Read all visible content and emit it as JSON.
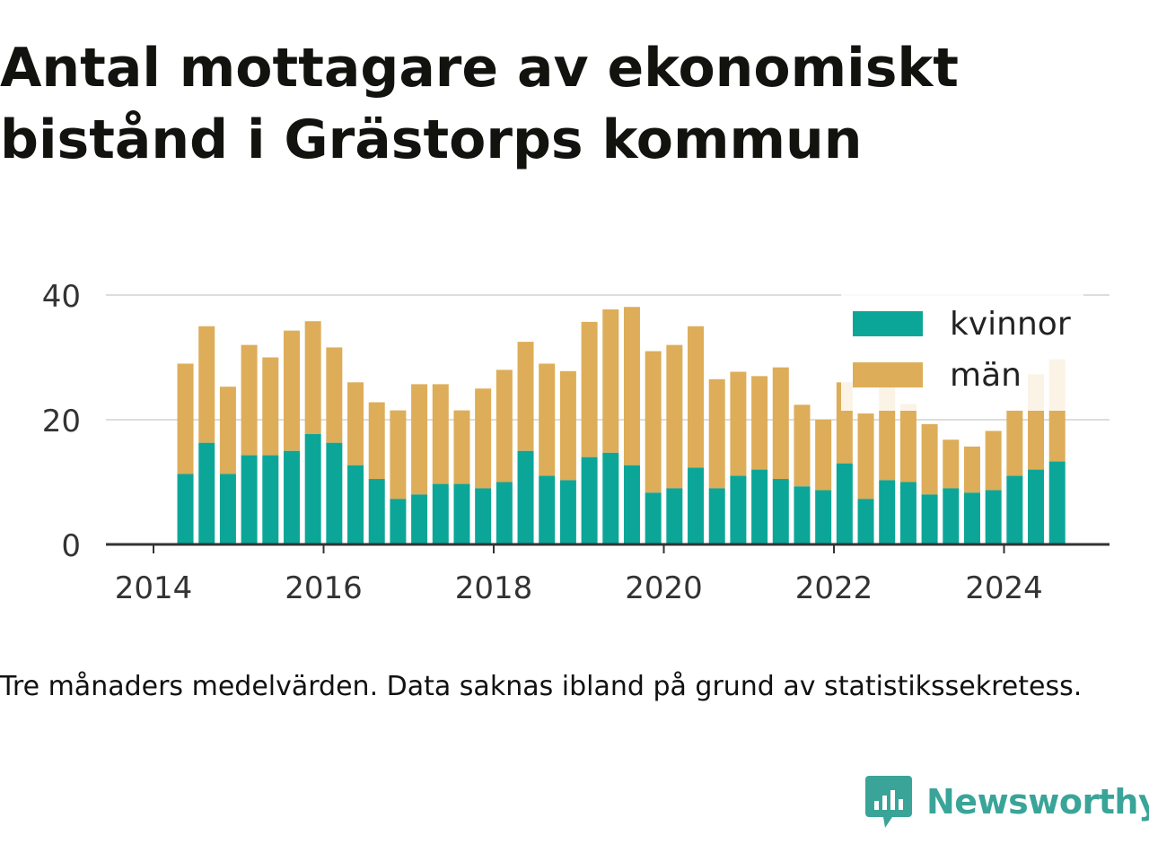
{
  "title": "Antal mottagare av ekonomiskt bistånd i Grästorps kommun",
  "caption": "Tre månaders medelvärden. Data saknas ibland på grund av statistikssekretess.",
  "brand": {
    "name": "Newsworthy"
  },
  "colors": {
    "kvinnor": "#0ca699",
    "man": "#ddad59",
    "grid": "#dddddd",
    "axis": "#333333",
    "text": "#333333",
    "brand": "#3aa499"
  },
  "chart_data": {
    "type": "bar",
    "stacked": true,
    "x_unit": "year (decimal)",
    "ylim": [
      0,
      40
    ],
    "yticks": [
      0,
      20,
      40
    ],
    "xticks": [
      2014,
      2016,
      2018,
      2020,
      2022,
      2024
    ],
    "xlim": [
      2013.5,
      2025.75
    ],
    "grid": "horizontal",
    "legend_position": "top-right",
    "x": [
      2014.375,
      2014.625,
      2014.875,
      2015.125,
      2015.375,
      2015.625,
      2015.875,
      2016.125,
      2016.375,
      2016.625,
      2016.875,
      2017.125,
      2017.375,
      2017.625,
      2017.875,
      2018.125,
      2018.375,
      2018.625,
      2018.875,
      2019.125,
      2019.375,
      2019.625,
      2019.875,
      2020.125,
      2020.375,
      2020.625,
      2020.875,
      2021.125,
      2021.375,
      2021.625,
      2021.875,
      2022.125,
      2022.375,
      2022.625,
      2022.875,
      2023.125,
      2023.375,
      2023.625,
      2023.875,
      2024.125,
      2024.375,
      2024.625
    ],
    "series": [
      {
        "name": "kvinnor",
        "values": [
          11.3,
          16.3,
          11.3,
          14.3,
          14.3,
          15,
          17.7,
          16.3,
          12.7,
          10.5,
          7.3,
          8,
          9.7,
          9.7,
          9,
          10,
          15,
          11,
          10.3,
          14,
          14.7,
          12.7,
          8.3,
          9,
          12.3,
          9,
          11,
          12,
          10.5,
          9.3,
          8.7,
          13,
          7.3,
          10.3,
          10,
          8,
          9,
          8.3,
          8.7,
          11,
          12,
          13.3
        ]
      },
      {
        "name": "män",
        "values": [
          17.7,
          18.7,
          14,
          17.7,
          15.7,
          19.3,
          18.1,
          15.3,
          13.3,
          12.3,
          14.2,
          17.7,
          16,
          11.8,
          16,
          18,
          17.5,
          18,
          17.5,
          21.7,
          23,
          25.4,
          22.7,
          23,
          22.7,
          17.5,
          16.7,
          15,
          17.9,
          13.1,
          11.3,
          13,
          13.7,
          15.7,
          12.5,
          11.3,
          7.8,
          7.4,
          9.5,
          10.5,
          15.3,
          16.4
        ]
      }
    ]
  }
}
